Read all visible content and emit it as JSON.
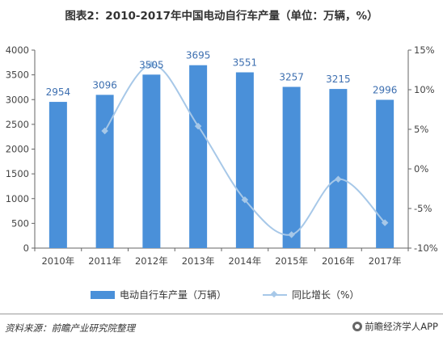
{
  "title": "图表2：2010-2017年中国电动自行车产量（单位：万辆，%）",
  "source": "资料来源：前瞻产业研究院整理",
  "brand": "前瞻经济学人APP",
  "colors": {
    "bar": "#4a90d9",
    "line": "#a7c8e8",
    "label": "#3d6fb0"
  },
  "chart_data": {
    "type": "bar",
    "categories": [
      "2010年",
      "2011年",
      "2012年",
      "2013年",
      "2014年",
      "2015年",
      "2016年",
      "2017年"
    ],
    "series": [
      {
        "name": "电动自行车产量（万辆）",
        "type": "bar",
        "axis": "left",
        "values": [
          2954,
          3096,
          3505,
          3695,
          3551,
          3257,
          3215,
          2996
        ]
      },
      {
        "name": "同比增长（%）",
        "type": "line",
        "axis": "right",
        "values": [
          null,
          4.8,
          13.2,
          5.4,
          -3.9,
          -8.3,
          -1.3,
          -6.8
        ]
      }
    ],
    "ylim": [
      0,
      4000
    ],
    "y_ticks": [
      0,
      500,
      1000,
      1500,
      2000,
      2500,
      3000,
      3500,
      4000
    ],
    "y2lim": [
      -10,
      15
    ],
    "y2_ticks": [
      "-10%",
      "-5%",
      "0%",
      "5%",
      "10%",
      "15%"
    ],
    "legend_position": "bottom",
    "grid": false
  }
}
